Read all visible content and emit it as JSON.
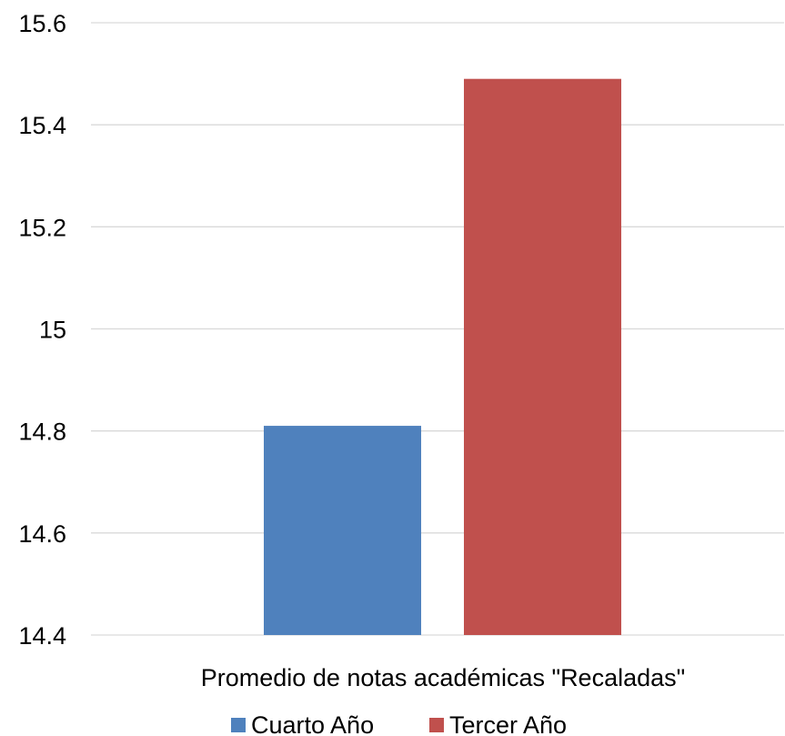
{
  "chart_data": {
    "type": "bar",
    "categories": [
      "Promedio de notas académicas \"Recaladas\""
    ],
    "series": [
      {
        "name": "Cuarto Año",
        "values": [
          14.81
        ],
        "color": "#4f81bd"
      },
      {
        "name": "Tercer Año",
        "values": [
          15.49
        ],
        "color": "#c0504d"
      }
    ],
    "ylim": [
      14.4,
      15.6
    ],
    "yticks": [
      15.6,
      15.4,
      15.2,
      15,
      14.8,
      14.6,
      14.4
    ],
    "ytick_labels": [
      "15.6",
      "15.4",
      "15.2",
      "15",
      "14.8",
      "14.6",
      "14.4"
    ],
    "grid": true,
    "gridline_color": "#d9d9d9",
    "legend_position": "bottom"
  }
}
